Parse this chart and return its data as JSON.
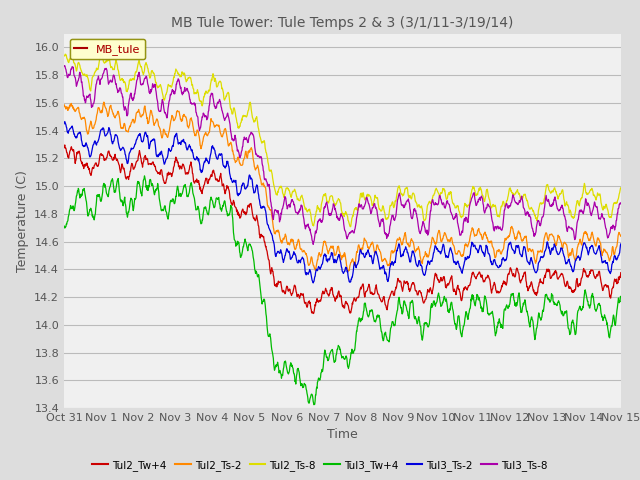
{
  "title": "MB Tule Tower: Tule Temps 2 & 3 (3/1/11-3/19/14)",
  "xlabel": "Time",
  "ylabel": "Temperature (C)",
  "ylim": [
    13.4,
    16.1
  ],
  "yticks": [
    13.4,
    13.6,
    13.8,
    14.0,
    14.2,
    14.4,
    14.6,
    14.8,
    15.0,
    15.2,
    15.4,
    15.6,
    15.8,
    16.0
  ],
  "xtick_labels": [
    "Oct 31",
    "Nov 1",
    "Nov 2",
    "Nov 3",
    "Nov 4",
    "Nov 5",
    "Nov 6",
    "Nov 7",
    "Nov 8",
    "Nov 9",
    "Nov 10",
    "Nov 11",
    "Nov 12",
    "Nov 13",
    "Nov 14",
    "Nov 15"
  ],
  "background_color": "#dddddd",
  "plot_bg_color": "#f0f0f0",
  "grid_color": "#bbbbbb",
  "legend_label": "MB_tule",
  "legend_text_color": "#aa0000",
  "legend_bg": "#ffffcc",
  "legend_border": "#888800",
  "title_color": "#555555",
  "axis_label_color": "#555555",
  "tick_color": "#555555",
  "series": [
    {
      "name": "Tul2_Tw+4",
      "color": "#cc0000"
    },
    {
      "name": "Tul2_Ts-2",
      "color": "#ff8800"
    },
    {
      "name": "Tul2_Ts-8",
      "color": "#dddd00"
    },
    {
      "name": "Tul3_Tw+4",
      "color": "#00bb00"
    },
    {
      "name": "Tul3_Ts-2",
      "color": "#0000dd"
    },
    {
      "name": "Tul3_Ts-8",
      "color": "#aa00aa"
    }
  ]
}
